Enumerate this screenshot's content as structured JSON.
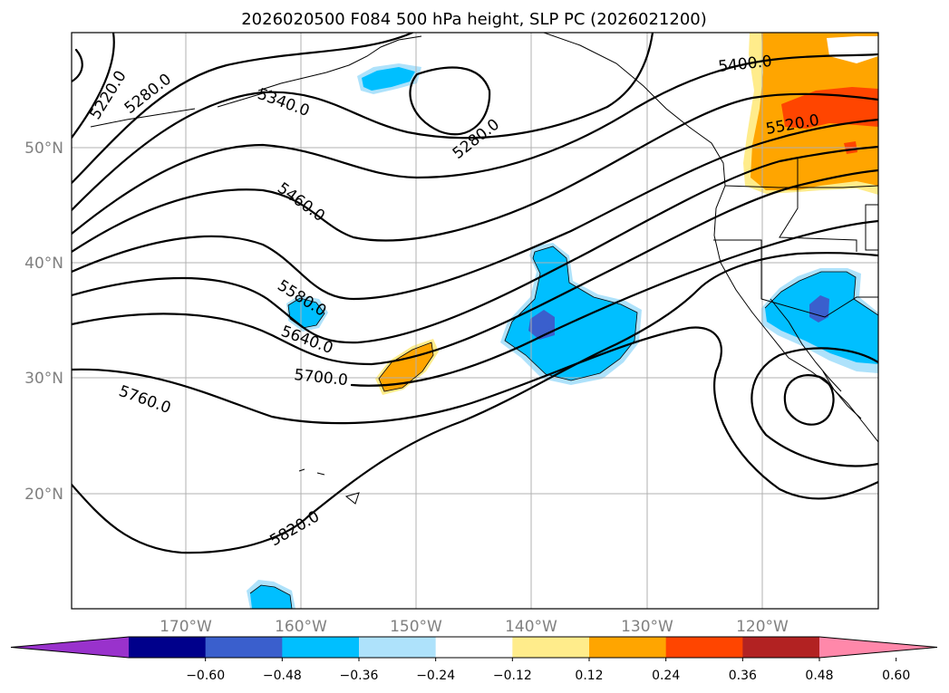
{
  "title": "2026020500 F084 500 hPa height, SLP PC (2026021200)",
  "lat_labels": [
    "50°N",
    "40°N",
    "30°N",
    "20°N"
  ],
  "lon_labels": [
    "170°W",
    "160°W",
    "150°W",
    "140°W",
    "130°W",
    "120°W"
  ],
  "contour_labels": [
    "5220.0",
    "5280.0",
    "5340.0",
    "5280.0",
    "5400.0",
    "5520.0",
    "5460.0",
    "5580.0",
    "5640.0",
    "5700.0",
    "5760.0",
    "5820.0"
  ],
  "colorbar": {
    "ticks": [
      "−0.60",
      "−0.48",
      "−0.36",
      "−0.24",
      "−0.12",
      "0.12",
      "0.24",
      "0.36",
      "0.48",
      "0.60"
    ],
    "colors": [
      "#9932cc",
      "#00008b",
      "#3a5fcd",
      "#00bfff",
      "#aee2fb",
      "#ffffff",
      "#ffec8b",
      "#ffa500",
      "#ff4500",
      "#b22222",
      "#ff88aa"
    ]
  },
  "colors": {
    "neg_light": "#aee2fb",
    "neg_mid": "#00bfff",
    "neg_dark": "#3a5fcd",
    "pos_light": "#ffec8b",
    "pos_mid": "#ffa500",
    "pos_dark": "#ff4500"
  }
}
